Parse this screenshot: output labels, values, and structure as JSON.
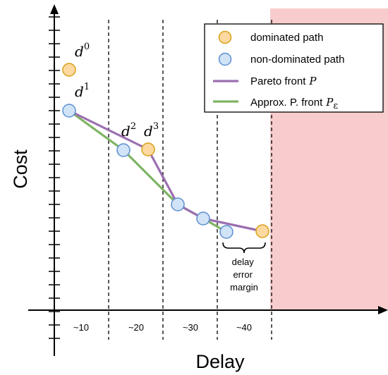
{
  "axes": {
    "y_title": "Cost",
    "x_title": "Delay"
  },
  "bins": [
    "~10",
    "~20",
    "~30",
    "~40"
  ],
  "legend": {
    "dominated": "dominated path",
    "non_dominated": "non-dominated path",
    "pareto": "Pareto front",
    "pareto_symbol": "P",
    "approx": "Approx. P. front",
    "approx_symbol": "P",
    "approx_subscript": "ε"
  },
  "points": {
    "d0": {
      "base": "d",
      "sup": "0"
    },
    "d1": {
      "base": "d",
      "sup": "1"
    },
    "d2": {
      "base": "d",
      "sup": "2"
    },
    "d3": {
      "base": "d",
      "sup": "3"
    }
  },
  "annotation": {
    "line1": "delay",
    "line2": "error",
    "line3": "margin"
  },
  "colors": {
    "dominated_fill": "#fdd9a1",
    "dominated_stroke": "#d9a018",
    "non_dominated_fill": "#d1e3f6",
    "non_dominated_stroke": "#5b8fd4",
    "pareto": "#9b6fb0",
    "approx": "#7fb463",
    "infeasible_region": "#f8cccc"
  }
}
